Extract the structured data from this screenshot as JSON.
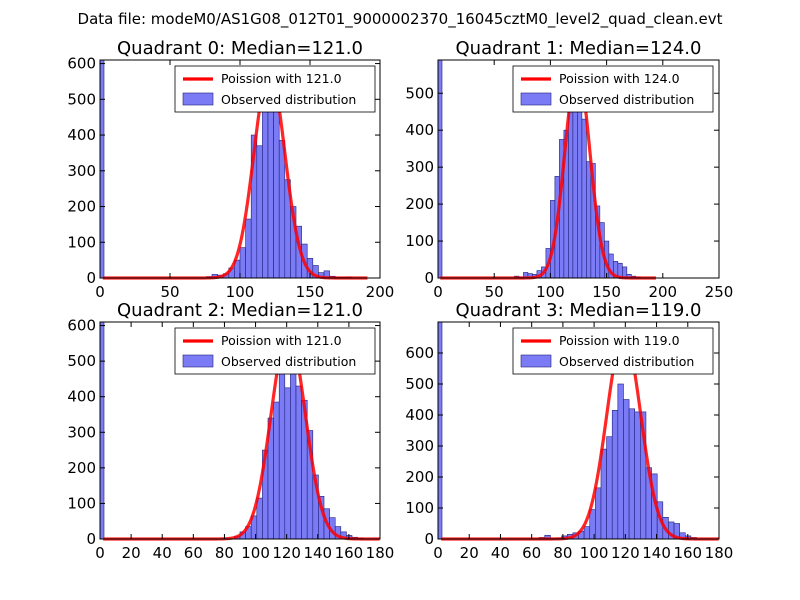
{
  "figure": {
    "title": "Data file: modeM0/AS1G08_012T01_9000002370_16045cztM0_level2_quad_clean.evt"
  },
  "colors": {
    "bars": "#7b7bf6",
    "bar_edge": "#20207a",
    "curve": "#ff0000",
    "background": "#ffffff"
  },
  "chart_data": [
    {
      "type": "bar",
      "title": "Quadrant 0: Median=121.0",
      "xlim": [
        0,
        200
      ],
      "ylim": [
        0,
        610
      ],
      "xticks": [
        0,
        50,
        100,
        150,
        200
      ],
      "yticks": [
        0,
        100,
        200,
        300,
        400,
        500,
        600
      ],
      "legend": {
        "position": "top-right",
        "line_label": "Poission with 121.0",
        "bar_label": "Observed distribution"
      },
      "poisson_mean": 121.0,
      "poisson_peak": 580,
      "spike": {
        "x": 0,
        "value": 610
      },
      "bin_width": 4,
      "bins": [
        [
          76,
          4
        ],
        [
          80,
          10
        ],
        [
          84,
          8
        ],
        [
          88,
          12
        ],
        [
          92,
          28
        ],
        [
          96,
          50
        ],
        [
          100,
          85
        ],
        [
          104,
          165
        ],
        [
          108,
          400
        ],
        [
          112,
          370
        ],
        [
          116,
          555
        ],
        [
          120,
          500
        ],
        [
          124,
          575
        ],
        [
          128,
          385
        ],
        [
          132,
          275
        ],
        [
          136,
          200
        ],
        [
          140,
          145
        ],
        [
          144,
          95
        ],
        [
          148,
          55
        ],
        [
          152,
          35
        ],
        [
          156,
          15
        ],
        [
          160,
          20
        ],
        [
          164,
          5
        ],
        [
          168,
          2
        ],
        [
          172,
          2
        ],
        [
          176,
          3
        ]
      ]
    },
    {
      "type": "bar",
      "title": "Quadrant 1: Median=124.0",
      "xlim": [
        0,
        250
      ],
      "ylim": [
        0,
        590
      ],
      "xticks": [
        0,
        50,
        100,
        150,
        200,
        250
      ],
      "yticks": [
        0,
        100,
        200,
        300,
        400,
        500
      ],
      "legend": {
        "position": "top-right",
        "line_label": "Poission with 124.0",
        "bar_label": "Observed distribution"
      },
      "poisson_mean": 124.0,
      "poisson_peak": 565,
      "spike": {
        "x": 0,
        "value": 590
      },
      "bin_width": 4,
      "bins": [
        [
          68,
          5
        ],
        [
          72,
          3
        ],
        [
          76,
          15
        ],
        [
          80,
          12
        ],
        [
          84,
          10
        ],
        [
          88,
          20
        ],
        [
          92,
          30
        ],
        [
          96,
          80
        ],
        [
          100,
          210
        ],
        [
          104,
          275
        ],
        [
          108,
          375
        ],
        [
          112,
          400
        ],
        [
          116,
          520
        ],
        [
          120,
          560
        ],
        [
          124,
          545
        ],
        [
          128,
          430
        ],
        [
          132,
          315
        ],
        [
          136,
          310
        ],
        [
          140,
          195
        ],
        [
          144,
          150
        ],
        [
          148,
          100
        ],
        [
          152,
          65
        ],
        [
          156,
          45
        ],
        [
          160,
          40
        ],
        [
          164,
          30
        ],
        [
          168,
          10
        ],
        [
          172,
          5
        ],
        [
          176,
          3
        ]
      ]
    },
    {
      "type": "bar",
      "title": "Quadrant 2: Median=121.0",
      "xlim": [
        0,
        180
      ],
      "ylim": [
        0,
        610
      ],
      "xticks": [
        0,
        20,
        40,
        60,
        80,
        100,
        120,
        140,
        160,
        180
      ],
      "yticks": [
        0,
        100,
        200,
        300,
        400,
        500,
        600
      ],
      "legend": {
        "position": "top-right",
        "line_label": "Poission with 121.0",
        "bar_label": "Observed distribution"
      },
      "poisson_mean": 121.0,
      "poisson_peak": 580,
      "spike": {
        "x": 0,
        "value": 610
      },
      "bin_width": 3.6,
      "bins": [
        [
          86.4,
          8
        ],
        [
          90,
          20
        ],
        [
          93.6,
          35
        ],
        [
          97.2,
          65
        ],
        [
          100.8,
          115
        ],
        [
          104.4,
          250
        ],
        [
          108,
          340
        ],
        [
          111.6,
          385
        ],
        [
          115.2,
          480
        ],
        [
          118.8,
          425
        ],
        [
          122.4,
          525
        ],
        [
          126,
          430
        ],
        [
          129.6,
          390
        ],
        [
          133.2,
          305
        ],
        [
          136.8,
          180
        ],
        [
          140.4,
          120
        ],
        [
          144,
          85
        ],
        [
          147.6,
          60
        ],
        [
          151.2,
          35
        ],
        [
          154.8,
          20
        ],
        [
          158.4,
          10
        ],
        [
          162,
          5
        ],
        [
          165.6,
          3
        ]
      ]
    },
    {
      "type": "bar",
      "title": "Quadrant 3: Median=119.0",
      "xlim": [
        0,
        180
      ],
      "ylim": [
        0,
        700
      ],
      "xticks": [
        0,
        20,
        40,
        60,
        80,
        100,
        120,
        140,
        160,
        180
      ],
      "yticks": [
        0,
        100,
        200,
        300,
        400,
        500,
        600
      ],
      "legend": {
        "position": "top-right",
        "line_label": "Poission with 119.0",
        "bar_label": "Observed distribution"
      },
      "poisson_mean": 119.0,
      "poisson_peak": 660,
      "spike": {
        "x": 0,
        "value": 700
      },
      "bin_width": 3.6,
      "bins": [
        [
          64.8,
          5
        ],
        [
          68.4,
          12
        ],
        [
          72,
          3
        ],
        [
          75.6,
          3
        ],
        [
          79.2,
          10
        ],
        [
          82.8,
          15
        ],
        [
          86.4,
          20
        ],
        [
          90,
          25
        ],
        [
          93.6,
          40
        ],
        [
          97.2,
          95
        ],
        [
          100.8,
          165
        ],
        [
          104.4,
          290
        ],
        [
          108,
          330
        ],
        [
          111.6,
          415
        ],
        [
          115.2,
          500
        ],
        [
          118.8,
          450
        ],
        [
          122.4,
          420
        ],
        [
          126,
          410
        ],
        [
          129.6,
          410
        ],
        [
          133.2,
          230
        ],
        [
          136.8,
          210
        ],
        [
          140.4,
          120
        ],
        [
          144,
          70
        ],
        [
          147.6,
          55
        ],
        [
          151.2,
          50
        ],
        [
          154.8,
          20
        ],
        [
          158.4,
          10
        ],
        [
          162,
          5
        ]
      ]
    }
  ]
}
